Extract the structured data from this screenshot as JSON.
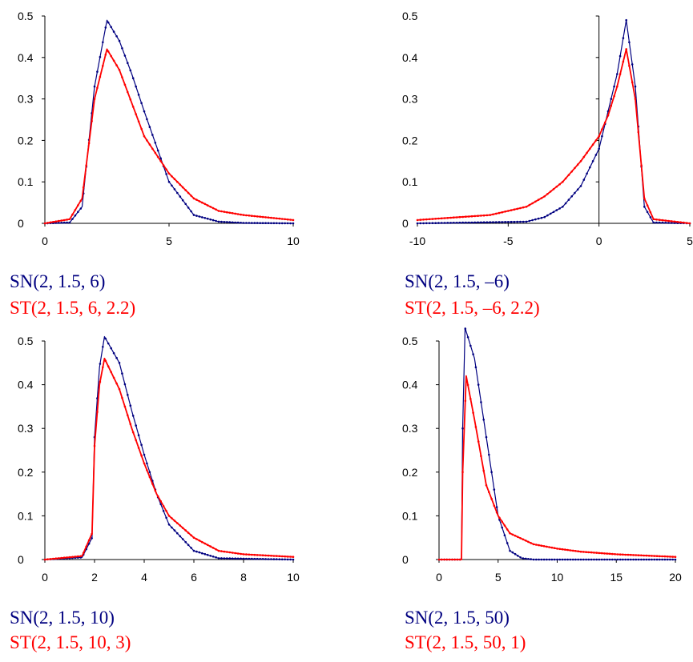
{
  "colors": {
    "sn": "#000080",
    "st": "#ff0000",
    "axis": "#000000"
  },
  "chart_data": [
    {
      "type": "line",
      "xlim": [
        0,
        10
      ],
      "ylim": [
        0,
        0.5
      ],
      "x_ticks": [
        "0",
        "5",
        "10"
      ],
      "y_ticks": [
        "0",
        "0.1",
        "0.2",
        "0.3",
        "0.4",
        "0.5"
      ],
      "series": [
        {
          "name": "SN(2, 1.5, 6)",
          "x": [
            0,
            1,
            1.5,
            2,
            2.5,
            3,
            3.5,
            4,
            5,
            6,
            7,
            8,
            10
          ],
          "y": [
            0,
            0.002,
            0.04,
            0.33,
            0.49,
            0.44,
            0.36,
            0.27,
            0.1,
            0.02,
            0.004,
            0.001,
            0
          ]
        },
        {
          "name": "ST(2, 1.5, 6, 2.2)",
          "x": [
            0,
            1,
            1.5,
            2,
            2.5,
            3,
            3.5,
            4,
            5,
            6,
            7,
            8,
            10
          ],
          "y": [
            0,
            0.01,
            0.06,
            0.3,
            0.42,
            0.37,
            0.29,
            0.21,
            0.12,
            0.06,
            0.03,
            0.02,
            0.008
          ]
        }
      ]
    },
    {
      "type": "line",
      "xlim": [
        -10,
        5
      ],
      "ylim": [
        0,
        0.5
      ],
      "x_ticks": [
        "-10",
        "-5",
        "0",
        "5"
      ],
      "y_ticks": [
        "0",
        "0.1",
        "0.2",
        "0.3",
        "0.4",
        "0.5"
      ],
      "series": [
        {
          "name": "SN(2, 1.5, –6)",
          "x": [
            -10,
            -4,
            -3,
            -2,
            -1,
            0,
            0.5,
            1,
            1.5,
            2,
            2.5,
            3,
            5
          ],
          "y": [
            0,
            0.004,
            0.015,
            0.04,
            0.09,
            0.18,
            0.27,
            0.36,
            0.49,
            0.33,
            0.04,
            0.002,
            0
          ]
        },
        {
          "name": "ST(2, 1.5, –6, 2.2)",
          "x": [
            -10,
            -8,
            -6,
            -4,
            -3,
            -2,
            -1,
            0,
            0.5,
            1,
            1.5,
            2,
            2.5,
            3,
            5
          ],
          "y": [
            0.008,
            0.014,
            0.02,
            0.04,
            0.065,
            0.1,
            0.15,
            0.21,
            0.26,
            0.33,
            0.42,
            0.3,
            0.06,
            0.01,
            0
          ]
        }
      ]
    },
    {
      "type": "line",
      "xlim": [
        0,
        10
      ],
      "ylim": [
        0,
        0.5
      ],
      "x_ticks": [
        "0",
        "2",
        "4",
        "6",
        "8",
        "10"
      ],
      "y_ticks": [
        "0",
        "0.1",
        "0.2",
        "0.3",
        "0.4",
        "0.5"
      ],
      "series": [
        {
          "name": "SN(2, 1.5, 10)",
          "x": [
            0,
            1.5,
            1.9,
            2,
            2.2,
            2.4,
            3,
            3.5,
            4,
            4.5,
            5,
            6,
            7,
            10
          ],
          "y": [
            0,
            0.005,
            0.05,
            0.28,
            0.44,
            0.51,
            0.45,
            0.34,
            0.24,
            0.15,
            0.08,
            0.02,
            0.003,
            0
          ]
        },
        {
          "name": "ST(2, 1.5, 10, 3)",
          "x": [
            0,
            1.5,
            1.9,
            2,
            2.2,
            2.4,
            3,
            3.5,
            4,
            4.5,
            5,
            6,
            7,
            8,
            10
          ],
          "y": [
            0,
            0.008,
            0.06,
            0.26,
            0.4,
            0.46,
            0.39,
            0.3,
            0.22,
            0.15,
            0.1,
            0.05,
            0.02,
            0.012,
            0.006
          ]
        }
      ]
    },
    {
      "type": "line",
      "xlim": [
        0,
        20
      ],
      "ylim": [
        0,
        0.5
      ],
      "x_ticks": [
        "0",
        "5",
        "10",
        "15",
        "20"
      ],
      "y_ticks": [
        "0",
        "0.1",
        "0.2",
        "0.3",
        "0.4",
        "0.5"
      ],
      "series": [
        {
          "name": "SN(2, 1.5, 50)",
          "x": [
            0,
            1.9,
            2,
            2.2,
            3,
            4,
            5,
            6,
            7,
            8,
            20
          ],
          "y": [
            0,
            0,
            0.3,
            0.53,
            0.46,
            0.28,
            0.1,
            0.02,
            0.003,
            0,
            0
          ]
        },
        {
          "name": "ST(2, 1.5, 50, 1)",
          "x": [
            0,
            1.9,
            2,
            2.3,
            3,
            4,
            5,
            6,
            8,
            10,
            12,
            15,
            20
          ],
          "y": [
            0,
            0,
            0.2,
            0.42,
            0.32,
            0.17,
            0.1,
            0.06,
            0.035,
            0.025,
            0.018,
            0.012,
            0.006
          ]
        }
      ]
    }
  ]
}
